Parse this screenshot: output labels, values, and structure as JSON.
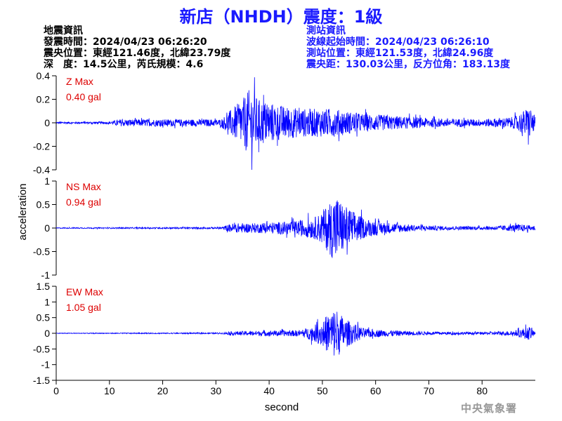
{
  "header": {
    "title": "新店（NHDH）震度：1級"
  },
  "quake_info": {
    "heading": "地震資訊",
    "origin_time": "發震時間：2024/04/23 06:26:20",
    "epicenter": "震央位置：東經121.46度，北緯23.79度",
    "depth_magnitude": "深　度：14.5公里，芮氏規模：4.6"
  },
  "station_info": {
    "heading": "測站資訊",
    "wave_start": "波線起始時間：2024/04/23 06:26:10",
    "station_location": "測站位置：東經121.53度，北緯24.96度",
    "distance_azimuth": "震央距：130.03公里，反方位角：183.13度"
  },
  "footer": {
    "agency": "中央氣象署"
  },
  "colors": {
    "trace": "#0000ff",
    "label": "#dd0000",
    "title": "#1a1aff"
  },
  "chart_data": {
    "type": "line",
    "xlabel": "second",
    "ylabel": "acceleration",
    "xlim": [
      0,
      90
    ],
    "x_ticks": [
      "0",
      "10",
      "20",
      "30",
      "40",
      "50",
      "60",
      "70",
      "80"
    ],
    "grid": false,
    "panels": [
      {
        "component": "Z",
        "label": "Z Max",
        "max_text": "0.40 gal",
        "max_value": 0.4,
        "ylim": [
          -0.4,
          0.4
        ],
        "y_ticks": [
          "0.4",
          "0.2",
          "0",
          "-0.2",
          "-0.4"
        ],
        "envelope": [
          [
            0,
            0.008
          ],
          [
            10,
            0.01
          ],
          [
            12,
            0.03
          ],
          [
            20,
            0.03
          ],
          [
            31,
            0.03
          ],
          [
            33,
            0.12
          ],
          [
            35,
            0.2
          ],
          [
            36.5,
            0.3
          ],
          [
            38,
            0.2
          ],
          [
            42,
            0.15
          ],
          [
            46,
            0.12
          ],
          [
            52,
            0.12
          ],
          [
            57,
            0.08
          ],
          [
            63,
            0.06
          ],
          [
            70,
            0.04
          ],
          [
            80,
            0.03
          ],
          [
            86,
            0.05
          ],
          [
            89,
            0.14
          ],
          [
            90,
            0.05
          ]
        ]
      },
      {
        "component": "NS",
        "label": "NS Max",
        "max_text": "0.94 gal",
        "max_value": 0.94,
        "ylim": [
          -1,
          1
        ],
        "y_ticks": [
          "1",
          "0.5",
          "0",
          "-0.5",
          "-1"
        ],
        "envelope": [
          [
            0,
            0.01
          ],
          [
            31,
            0.02
          ],
          [
            33,
            0.1
          ],
          [
            37,
            0.1
          ],
          [
            45,
            0.15
          ],
          [
            49,
            0.25
          ],
          [
            51,
            0.5
          ],
          [
            52.5,
            0.75
          ],
          [
            54,
            0.5
          ],
          [
            56,
            0.35
          ],
          [
            58,
            0.2
          ],
          [
            62,
            0.12
          ],
          [
            68,
            0.06
          ],
          [
            75,
            0.04
          ],
          [
            82,
            0.04
          ],
          [
            87,
            0.08
          ],
          [
            90,
            0.05
          ]
        ]
      },
      {
        "component": "EW",
        "label": "EW Max",
        "max_text": "1.05 gal",
        "max_value": 1.05,
        "ylim": [
          -1.5,
          1.5
        ],
        "y_ticks": [
          "1.5",
          "1",
          "0.5",
          "0",
          "-0.5",
          "-1",
          "-1.5"
        ],
        "envelope": [
          [
            0,
            0.01
          ],
          [
            31,
            0.02
          ],
          [
            33,
            0.06
          ],
          [
            38,
            0.08
          ],
          [
            46,
            0.1
          ],
          [
            49,
            0.3
          ],
          [
            51,
            0.6
          ],
          [
            52.5,
            0.85
          ],
          [
            54,
            0.5
          ],
          [
            56,
            0.3
          ],
          [
            58,
            0.15
          ],
          [
            62,
            0.1
          ],
          [
            70,
            0.05
          ],
          [
            80,
            0.04
          ],
          [
            86,
            0.08
          ],
          [
            89,
            0.22
          ],
          [
            90,
            0.05
          ]
        ]
      }
    ]
  }
}
